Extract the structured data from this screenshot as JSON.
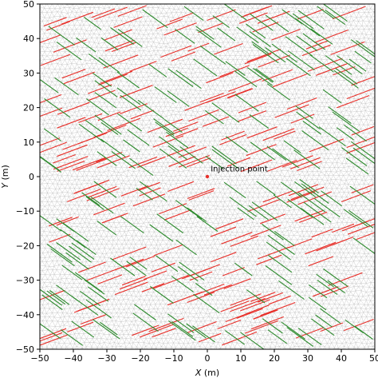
{
  "chart_data": {
    "type": "scatter",
    "description_role": "fracture network map over triangular mesh",
    "xlabel": {
      "italic": "X",
      "unit": " (m)"
    },
    "ylabel": {
      "italic": "Y",
      "unit": " (m)"
    },
    "xlim": [
      -50,
      50
    ],
    "ylim": [
      -50,
      50
    ],
    "xticks": [
      -50,
      -40,
      -30,
      -20,
      -10,
      0,
      10,
      20,
      30,
      40,
      50
    ],
    "yticks": [
      -50,
      -40,
      -30,
      -20,
      -10,
      0,
      10,
      20,
      30,
      40,
      50
    ],
    "grid": false,
    "mesh": {
      "visible": true,
      "color": "#b4b4b4"
    },
    "fracture_sets": [
      {
        "name": "",
        "color": "#e8302a",
        "orientation_deg": 20,
        "length_m": 9
      },
      {
        "name": "",
        "color": "#2e8b2e",
        "orientation_deg": -35,
        "length_m": 8
      }
    ],
    "points": [
      {
        "x": 0,
        "y": 0,
        "color": "#e8302a"
      }
    ],
    "annotations": [
      {
        "text": "Injection point",
        "x": 1,
        "y": 1.5
      }
    ]
  }
}
